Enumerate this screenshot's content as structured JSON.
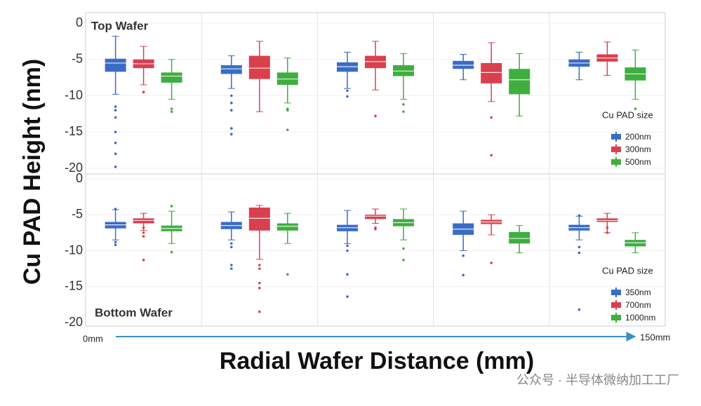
{
  "shared": {
    "ylabel": "Cu PAD Height (nm)",
    "xlabel": "Radial Wafer Distance (mm)",
    "x_start": "0mm",
    "x_end": "150mm",
    "watermark": "公众号 · 半导体微纳加工工厂"
  },
  "chart_data": [
    {
      "type": "box",
      "title": "Top Wafer",
      "legend_title": "Cu PAD size",
      "legend": "lower right",
      "grid": true,
      "categories": [
        null,
        null,
        null,
        null,
        null
      ],
      "ylim": [
        -20,
        0
      ],
      "yticks": [
        0,
        -5,
        -10,
        -15,
        -20
      ],
      "series": [
        {
          "name": "200nm",
          "color": "#3a6cc6",
          "boxes": [
            {
              "low": -9.8,
              "q1": -6.7,
              "median": -5.5,
              "q3": -4.9,
              "high": -1.8,
              "outliers": [
                -11.5,
                -12,
                -13,
                -15,
                -16.5,
                -18,
                -19.8
              ]
            },
            {
              "low": -9,
              "q1": -7,
              "median": -6.3,
              "q3": -5.8,
              "high": -4.5,
              "outliers": [
                -10,
                -11,
                -12,
                -14.5,
                -15.3
              ]
            },
            {
              "low": -9,
              "q1": -6.7,
              "median": -6,
              "q3": -5.4,
              "high": -4,
              "outliers": [
                -9.3,
                -10.1
              ]
            },
            {
              "low": -7.8,
              "q1": -6.3,
              "median": -5.8,
              "q3": -5.2,
              "high": -4.3,
              "outliers": []
            },
            {
              "low": -7.8,
              "q1": -6,
              "median": -5.5,
              "q3": -5,
              "high": -4,
              "outliers": []
            }
          ]
        },
        {
          "name": "300nm",
          "color": "#d9404e",
          "boxes": [
            {
              "low": -8.5,
              "q1": -6.2,
              "median": -5.6,
              "q3": -5,
              "high": -3.2,
              "outliers": [
                -9.5
              ]
            },
            {
              "low": -12.2,
              "q1": -7.7,
              "median": -6.2,
              "q3": -4.5,
              "high": -2.5,
              "outliers": []
            },
            {
              "low": -9.2,
              "q1": -6.2,
              "median": -5.3,
              "q3": -4.5,
              "high": -2.5,
              "outliers": [
                -12.8
              ]
            },
            {
              "low": -10.8,
              "q1": -8.3,
              "median": -6.8,
              "q3": -5.5,
              "high": -2.7,
              "outliers": [
                -13,
                -18.2
              ]
            },
            {
              "low": -7.2,
              "q1": -5.3,
              "median": -4.8,
              "q3": -4.3,
              "high": -2.6,
              "outliers": []
            }
          ]
        },
        {
          "name": "500nm",
          "color": "#3fae3f",
          "boxes": [
            {
              "low": -10.5,
              "q1": -8.2,
              "median": -7.3,
              "q3": -6.8,
              "high": -5,
              "outliers": [
                -11.8,
                -12.2
              ]
            },
            {
              "low": -11,
              "q1": -8.5,
              "median": -7.7,
              "q3": -6.8,
              "high": -4.8,
              "outliers": [
                -11.8,
                -12,
                -14.7
              ]
            },
            {
              "low": -10.5,
              "q1": -7.3,
              "median": -6.6,
              "q3": -5.8,
              "high": -4.2,
              "outliers": [
                -11.2,
                -12.2
              ]
            },
            {
              "low": -12.8,
              "q1": -9.8,
              "median": -7.8,
              "q3": -6.3,
              "high": -4.2,
              "outliers": []
            },
            {
              "low": -10.5,
              "q1": -7.9,
              "median": -7,
              "q3": -6.1,
              "high": -3.7,
              "outliers": [
                -11.8
              ]
            }
          ]
        }
      ]
    },
    {
      "type": "box",
      "title": "Bottom Wafer",
      "legend_title": "Cu PAD size",
      "legend": "lower right",
      "grid": true,
      "categories": [
        null,
        null,
        null,
        null,
        null
      ],
      "ylim": [
        -20,
        0
      ],
      "yticks": [
        0,
        -5,
        -10,
        -15,
        -20
      ],
      "series": [
        {
          "name": "350nm",
          "color": "#3a6cc6",
          "boxes": [
            {
              "low": -8.5,
              "q1": -6.9,
              "median": -6.4,
              "q3": -6,
              "high": -4.3,
              "outliers": [
                -4.2,
                -8.8,
                -9.2
              ]
            },
            {
              "low": -8.5,
              "q1": -7,
              "median": -6.5,
              "q3": -6,
              "high": -4.6,
              "outliers": [
                -9,
                -9.5,
                -12,
                -12.5
              ]
            },
            {
              "low": -9,
              "q1": -7.3,
              "median": -6.8,
              "q3": -6.4,
              "high": -4.4,
              "outliers": [
                -9.3,
                -10,
                -13.3,
                -16.4
              ]
            },
            {
              "low": -10,
              "q1": -7.8,
              "median": -7,
              "q3": -6.2,
              "high": -4.5,
              "outliers": [
                -10.7,
                -13.4
              ]
            },
            {
              "low": -8.5,
              "q1": -7.2,
              "median": -6.8,
              "q3": -6.4,
              "high": -5.2,
              "outliers": [
                -5.1,
                -9.5,
                -10.3,
                -18.2
              ]
            }
          ]
        },
        {
          "name": "700nm",
          "color": "#d9404e",
          "boxes": [
            {
              "low": -7.2,
              "q1": -6.2,
              "median": -5.8,
              "q3": -5.5,
              "high": -4.8,
              "outliers": [
                -6.8,
                -7.5,
                -8,
                -11.3
              ]
            },
            {
              "low": -11.2,
              "q1": -7.2,
              "median": -5.5,
              "q3": -4,
              "high": -3.7,
              "outliers": [
                -12,
                -12.5,
                -14.5,
                -15.2,
                -18.5
              ]
            },
            {
              "low": -6.2,
              "q1": -5.6,
              "median": -5.2,
              "q3": -5,
              "high": -4.2,
              "outliers": [
                -6.8,
                -7
              ]
            },
            {
              "low": -7.8,
              "q1": -6.3,
              "median": -6,
              "q3": -5.7,
              "high": -5,
              "outliers": [
                -11.7
              ]
            },
            {
              "low": -7.5,
              "q1": -6,
              "median": -5.8,
              "q3": -5.5,
              "high": -4.8,
              "outliers": [
                -6.8,
                -7.5
              ]
            }
          ]
        },
        {
          "name": "1000nm",
          "color": "#3fae3f",
          "boxes": [
            {
              "low": -9,
              "q1": -7.3,
              "median": -6.9,
              "q3": -6.5,
              "high": -4.5,
              "outliers": [
                -3.8,
                -10.2
              ]
            },
            {
              "low": -9,
              "q1": -7.2,
              "median": -6.6,
              "q3": -6.2,
              "high": -4.8,
              "outliers": [
                -13.3
              ]
            },
            {
              "low": -8.5,
              "q1": -6.6,
              "median": -6.1,
              "q3": -5.6,
              "high": -4.2,
              "outliers": [
                -9.7,
                -11.3
              ]
            },
            {
              "low": -10.3,
              "q1": -9,
              "median": -8.3,
              "q3": -7.4,
              "high": -6.5,
              "outliers": []
            },
            {
              "low": -10.3,
              "q1": -9.4,
              "median": -8.9,
              "q3": -8.5,
              "high": -7.5,
              "outliers": []
            }
          ]
        }
      ]
    }
  ]
}
